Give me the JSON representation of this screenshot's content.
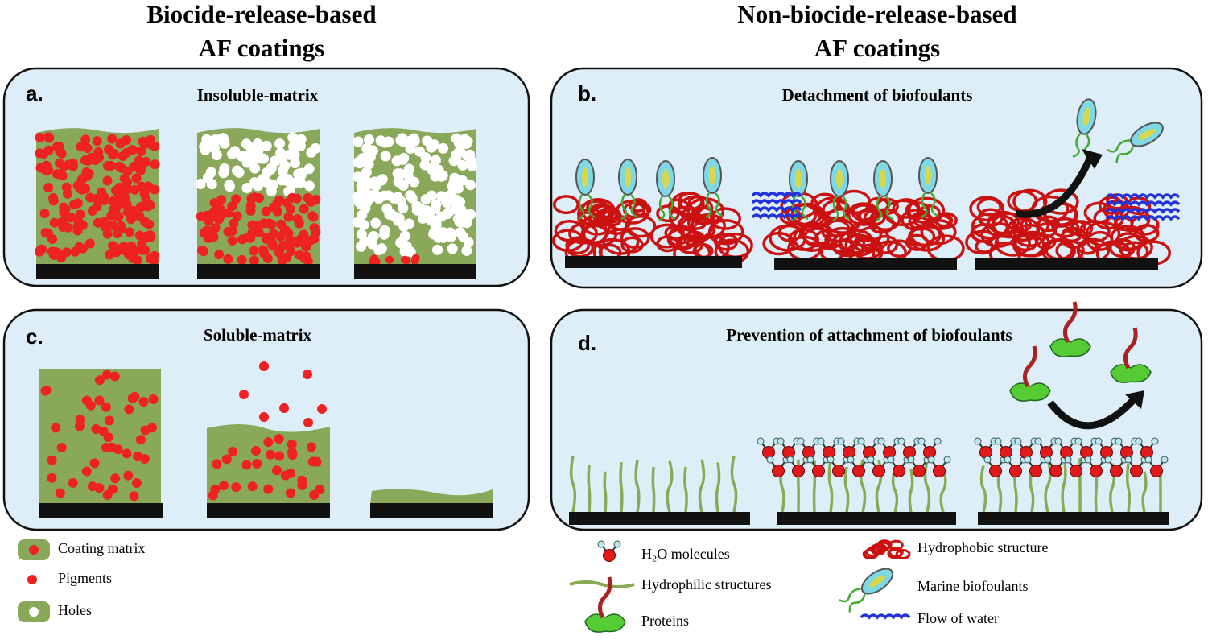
{
  "headings": [
    {
      "lines": [
        "Biocide-release-based",
        "AF coatings"
      ]
    },
    {
      "lines": [
        "Non-biocide-release-based",
        "AF coatings"
      ]
    }
  ],
  "panels": [
    {
      "letter": "a.",
      "title": "Insoluble-matrix"
    },
    {
      "letter": "b.",
      "title": "Detachment of biofoulants"
    },
    {
      "letter": "c.",
      "title": "Soluble-matrix"
    },
    {
      "letter": "d.",
      "title": "Prevention of attachment of biofoulants"
    }
  ],
  "legend": {
    "left": [
      "Coating matrix",
      "Pigments",
      "Holes"
    ],
    "right": [
      "H₂O molecules",
      "Hydrophilic structures",
      "Proteins",
      "Hydrophobic structure",
      "Marine biofoulants",
      "Flow of water"
    ]
  }
}
